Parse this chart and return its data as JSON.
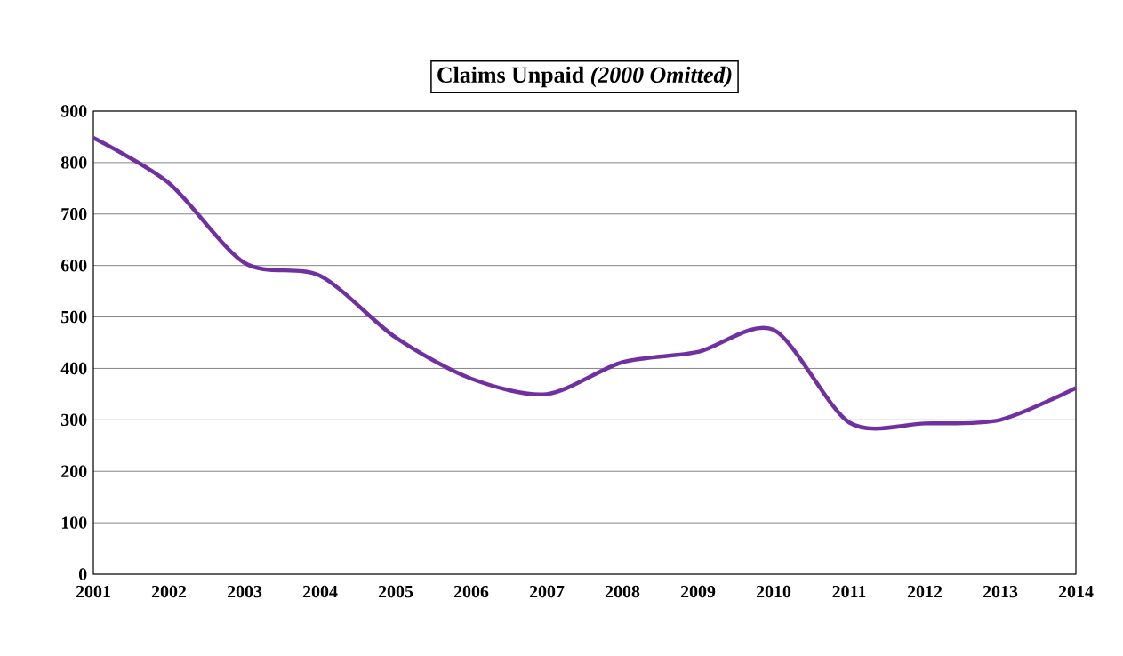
{
  "chart_data": {
    "type": "line",
    "title": "Claims Unpaid *(2000 Omitted)*",
    "x": [
      2001,
      2002,
      2003,
      2004,
      2005,
      2006,
      2007,
      2008,
      2009,
      2010,
      2011,
      2012,
      2013,
      2014
    ],
    "series": [
      {
        "color": "#7030a0",
        "values": [
          848,
          760,
          605,
          580,
          460,
          380,
          350,
          412,
          432,
          475,
          295,
          293,
          300,
          362
        ]
      }
    ],
    "xlim": [
      2001,
      2014
    ],
    "xticks": [
      2001,
      2002,
      2003,
      2004,
      2005,
      2006,
      2007,
      2008,
      2009,
      2010,
      2011,
      2012,
      2013,
      2014
    ],
    "ylim": [
      0,
      900
    ],
    "yticks": [
      0,
      100,
      200,
      300,
      400,
      500,
      600,
      700,
      800,
      900
    ],
    "grid": "y",
    "marker": "none",
    "line_style": "solid"
  }
}
